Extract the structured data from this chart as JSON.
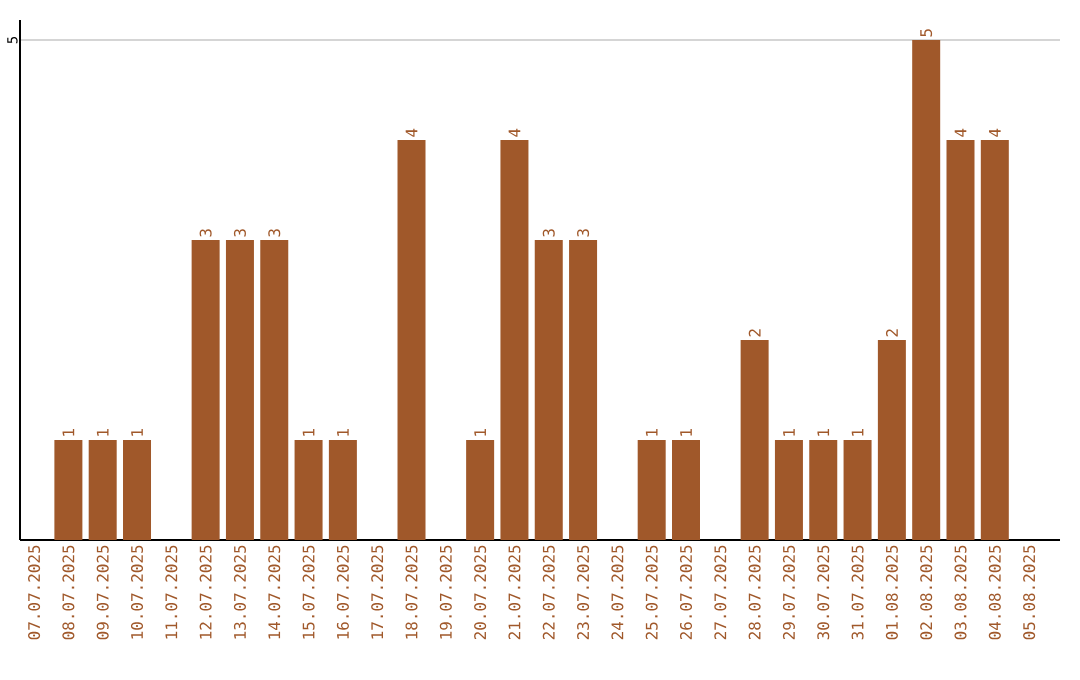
{
  "chart_data": {
    "type": "bar",
    "categories": [
      "07.07.2025",
      "08.07.2025",
      "09.07.2025",
      "10.07.2025",
      "11.07.2025",
      "12.07.2025",
      "13.07.2025",
      "14.07.2025",
      "15.07.2025",
      "16.07.2025",
      "17.07.2025",
      "18.07.2025",
      "19.07.2025",
      "20.07.2025",
      "21.07.2025",
      "22.07.2025",
      "23.07.2025",
      "24.07.2025",
      "25.07.2025",
      "26.07.2025",
      "27.07.2025",
      "28.07.2025",
      "29.07.2025",
      "30.07.2025",
      "31.07.2025",
      "01.08.2025",
      "02.08.2025",
      "03.08.2025",
      "04.08.2025",
      "05.08.2025"
    ],
    "values": [
      0,
      1,
      1,
      1,
      0,
      3,
      3,
      3,
      1,
      1,
      0,
      4,
      0,
      1,
      4,
      3,
      3,
      0,
      1,
      1,
      0,
      2,
      1,
      1,
      1,
      2,
      5,
      4,
      4,
      0
    ],
    "value_labels": [
      null,
      "1",
      "1",
      "1",
      null,
      "3",
      "3",
      "3",
      "1",
      "1",
      null,
      "4",
      null,
      "1",
      "4",
      "3",
      "3",
      null,
      "1",
      "1",
      null,
      "2",
      "1",
      "1",
      "1",
      "2",
      "5",
      "4",
      "4",
      null
    ],
    "color": "#a0582a",
    "ylim": [
      0,
      5.2
    ],
    "yticks": [
      5
    ],
    "grid": "y"
  }
}
